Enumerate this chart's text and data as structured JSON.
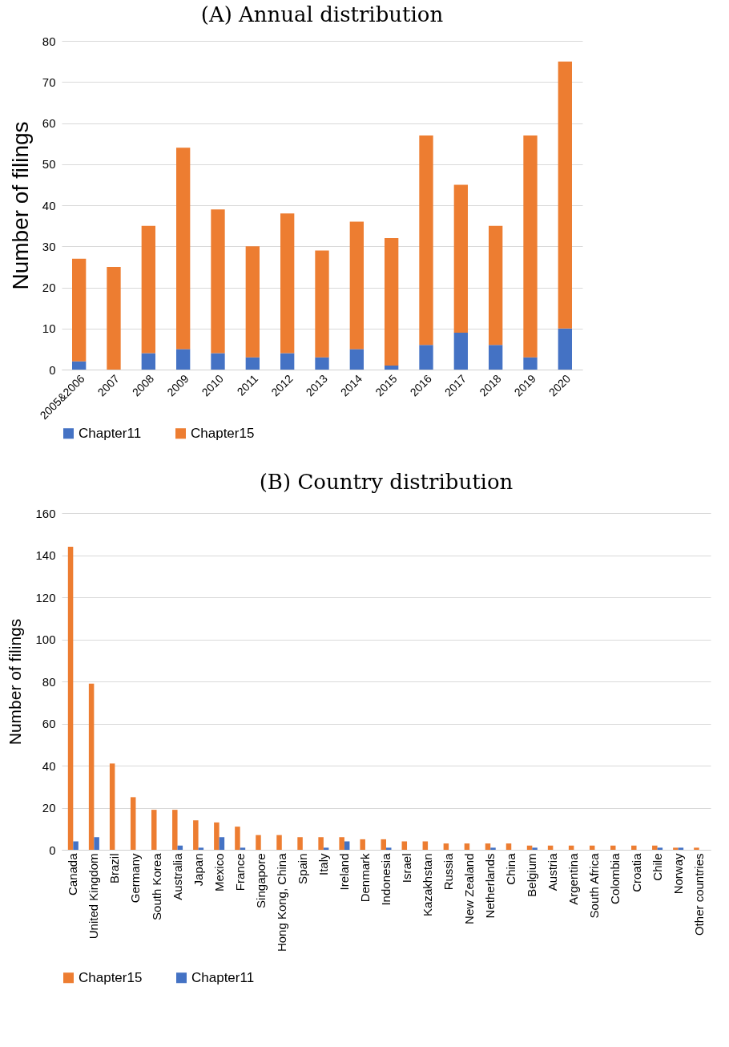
{
  "chart_data": [
    {
      "type": "bar",
      "title": "(A) Annual distribution",
      "ylabel": "Number of filings",
      "stacked": true,
      "grid": "y",
      "legend": "bottom",
      "categories": [
        "2005&2006",
        "2007",
        "2008",
        "2009",
        "2010",
        "2011",
        "2012",
        "2013",
        "2014",
        "2015",
        "2016",
        "2017",
        "2018",
        "2019",
        "2020"
      ],
      "series": [
        {
          "name": "Chapter11",
          "color": "#4472c4",
          "values": [
            2,
            0,
            4,
            5,
            4,
            3,
            4,
            3,
            5,
            1,
            6,
            9,
            6,
            3,
            10
          ]
        },
        {
          "name": "Chapter15",
          "color": "#ed7d31",
          "values": [
            25,
            25,
            31,
            49,
            35,
            27,
            34,
            26,
            31,
            31,
            51,
            36,
            29,
            54,
            65
          ]
        }
      ],
      "ylim": [
        0,
        80
      ],
      "yticks": [
        0,
        10,
        20,
        30,
        40,
        50,
        60,
        70,
        80
      ]
    },
    {
      "type": "bar",
      "title": "(B) Country distribution",
      "ylabel": "Number of filings",
      "grid": "y",
      "legend": "bottom",
      "categories": [
        "Canada",
        "United Kingdom",
        "Brazil",
        "Germany",
        "South Korea",
        "Australia",
        "Japan",
        "Mexico",
        "France",
        "Singapore",
        "Hong Kong, China",
        "Spain",
        "Italy",
        "Ireland",
        "Denmark",
        "Indonesia",
        "Israel",
        "Kazakhstan",
        "Russia",
        "New Zealand",
        "Netherlands",
        "China",
        "Belgium",
        "Austria",
        "Argentina",
        "South Africa",
        "Colombia",
        "Croatia",
        "Chile",
        "Norway",
        "Other countries"
      ],
      "series": [
        {
          "name": "Chapter15",
          "color": "#ed7d31",
          "values": [
            144,
            79,
            41,
            25,
            19,
            19,
            14,
            13,
            11,
            7,
            7,
            6,
            6,
            6,
            5,
            5,
            4,
            4,
            3,
            3,
            3,
            3,
            2,
            2,
            2,
            2,
            2,
            2,
            2,
            1,
            1
          ]
        },
        {
          "name": "Chapter11",
          "color": "#4472c4",
          "values": [
            4,
            6,
            0,
            0,
            0,
            2,
            1,
            6,
            1,
            0,
            0,
            0,
            1,
            4,
            0,
            1,
            0,
            0,
            0,
            0,
            1,
            0,
            1,
            0,
            0,
            0,
            0,
            0,
            1,
            1,
            0
          ]
        }
      ],
      "ylim": [
        0,
        160
      ],
      "yticks": [
        0,
        20,
        40,
        60,
        80,
        100,
        120,
        140,
        160
      ]
    }
  ]
}
